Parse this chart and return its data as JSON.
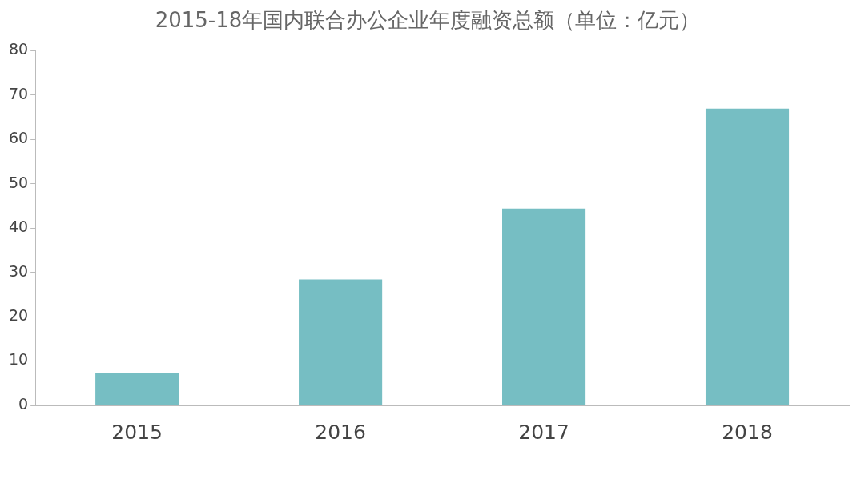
{
  "chart_data": {
    "type": "bar",
    "title": "2015-18年国内联合办公企业年度融资总额（单位：亿元）",
    "categories": [
      "2015",
      "2016",
      "2017",
      "2018"
    ],
    "values": [
      7.3,
      28.4,
      44.4,
      66.9
    ],
    "color": "#76bec3",
    "ylim": [
      0,
      80
    ],
    "yticks": [
      0,
      10,
      20,
      30,
      40,
      50,
      60,
      70,
      80
    ],
    "grid": false,
    "legend": false
  }
}
